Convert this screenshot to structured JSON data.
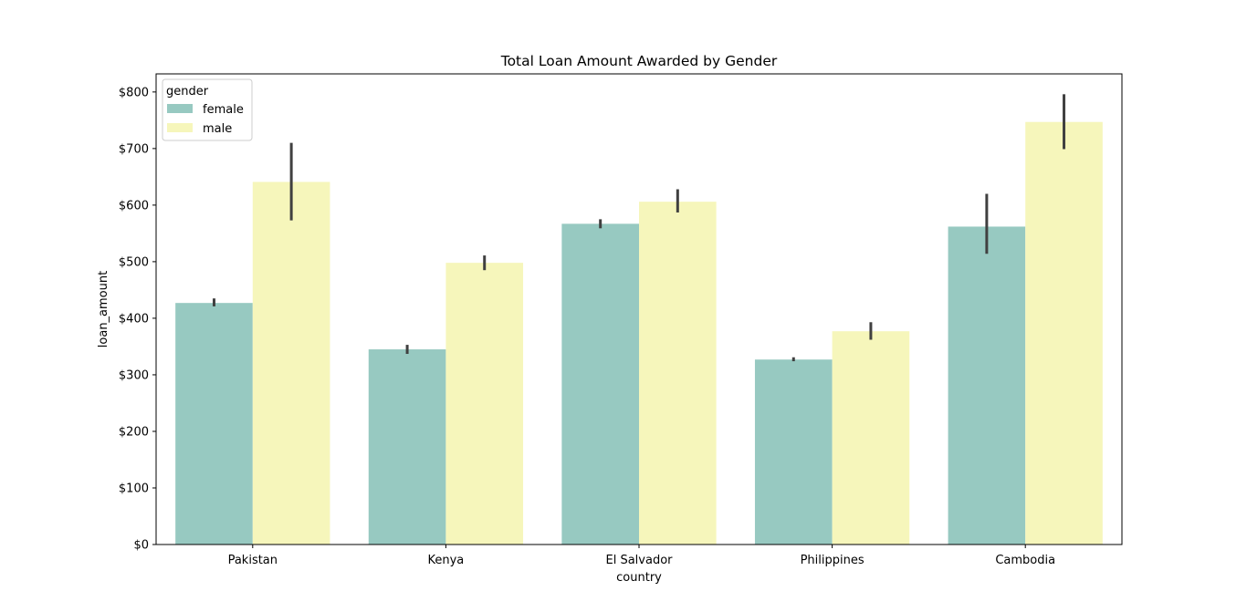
{
  "chart_data": {
    "type": "bar",
    "title": "Total Loan Amount Awarded by Gender",
    "xlabel": "country",
    "ylabel": "loan_amount",
    "categories": [
      "Pakistan",
      "Kenya",
      "El Salvador",
      "Philippines",
      "Cambodia"
    ],
    "ylim": [
      0,
      832
    ],
    "yticks": [
      0,
      100,
      200,
      300,
      400,
      500,
      600,
      700,
      800
    ],
    "ytick_labels": [
      "$0",
      "$100",
      "$200",
      "$300",
      "$400",
      "$500",
      "$600",
      "$700",
      "$800"
    ],
    "grid": false,
    "legend": {
      "title": "gender",
      "placement": "top-left"
    },
    "series": [
      {
        "name": "female",
        "color": "#97c9c1",
        "values": [
          427,
          345,
          567,
          327,
          562
        ],
        "error_low": [
          421,
          337,
          559,
          324,
          514
        ],
        "error_high": [
          435,
          353,
          575,
          331,
          620
        ]
      },
      {
        "name": "male",
        "color": "#f6f6bb",
        "values": [
          641,
          498,
          606,
          377,
          747
        ],
        "error_low": [
          573,
          485,
          587,
          362,
          699
        ],
        "error_high": [
          710,
          511,
          628,
          393,
          796
        ]
      }
    ],
    "error_bar_color": "#404040"
  }
}
